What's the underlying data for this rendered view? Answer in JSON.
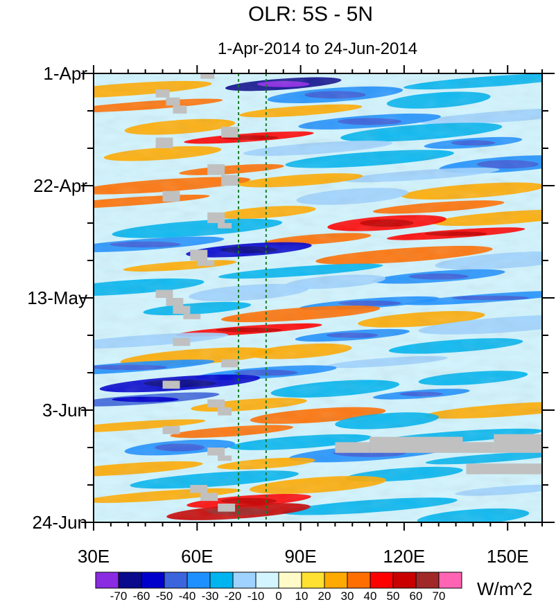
{
  "chart_data": {
    "type": "heatmap",
    "title": "OLR: 5S - 5N",
    "subtitle": "1-Apr-2014 to 24-Jun-2014",
    "x_range": [
      30,
      160
    ],
    "y_range_days": [
      0,
      84
    ],
    "x_ticks": [
      {
        "value": 30,
        "label": "30E"
      },
      {
        "value": 60,
        "label": "60E"
      },
      {
        "value": 90,
        "label": "90E"
      },
      {
        "value": 120,
        "label": "120E"
      },
      {
        "value": 150,
        "label": "150E"
      }
    ],
    "y_ticks": [
      {
        "day": 0,
        "label": "1-Apr"
      },
      {
        "day": 21,
        "label": "22-Apr"
      },
      {
        "day": 42,
        "label": "13-May"
      },
      {
        "day": 63,
        "label": "3-Jun"
      },
      {
        "day": 84,
        "label": "24-Jun"
      }
    ],
    "vertical_reference_lines": [
      72,
      80
    ],
    "colorbar": {
      "unit_label": "W/m^2",
      "levels": [
        "-70",
        "-60",
        "-50",
        "-40",
        "-30",
        "-20",
        "-10",
        "0",
        "10",
        "20",
        "30",
        "40",
        "50",
        "60",
        "70"
      ],
      "colors": [
        "#8a2be2",
        "#0a0a8c",
        "#0000cd",
        "#3c64dc",
        "#1e90ff",
        "#00b4f0",
        "#a0d2ff",
        "#d2f5ff",
        "#fffac8",
        "#ffe132",
        "#ffaa00",
        "#ff6e00",
        "#ff0000",
        "#c80000",
        "#a02828",
        "#ff64b4"
      ]
    },
    "anomaly_bands": [
      {
        "day": 1.5,
        "lon": 145,
        "value": -25
      },
      {
        "day": 2,
        "lon": 85,
        "value": -70
      },
      {
        "day": 3,
        "lon": 40,
        "value": 20
      },
      {
        "day": 4,
        "lon": 100,
        "value": -40
      },
      {
        "day": 5,
        "lon": 130,
        "value": -30
      },
      {
        "day": 6,
        "lon": 45,
        "value": 30
      },
      {
        "day": 7,
        "lon": 90,
        "value": 20
      },
      {
        "day": 8,
        "lon": 150,
        "value": -20
      },
      {
        "day": 9,
        "lon": 110,
        "value": -40
      },
      {
        "day": 10,
        "lon": 55,
        "value": 20
      },
      {
        "day": 11,
        "lon": 125,
        "value": -25
      },
      {
        "day": 12,
        "lon": 75,
        "value": 40
      },
      {
        "day": 13,
        "lon": 140,
        "value": -40
      },
      {
        "day": 14,
        "lon": 95,
        "value": -20
      },
      {
        "day": 15,
        "lon": 50,
        "value": 20
      },
      {
        "day": 16,
        "lon": 110,
        "value": -30
      },
      {
        "day": 17,
        "lon": 150,
        "value": -40
      },
      {
        "day": 18,
        "lon": 70,
        "value": 30
      },
      {
        "day": 19,
        "lon": 125,
        "value": -20
      },
      {
        "day": 20,
        "lon": 90,
        "value": 20
      },
      {
        "day": 21,
        "lon": 50,
        "value": 30
      },
      {
        "day": 22,
        "lon": 140,
        "value": 20
      },
      {
        "day": 23,
        "lon": 105,
        "value": -20
      },
      {
        "day": 24,
        "lon": 40,
        "value": 30
      },
      {
        "day": 25,
        "lon": 130,
        "value": 30
      },
      {
        "day": 26,
        "lon": 80,
        "value": 20
      },
      {
        "day": 27,
        "lon": 150,
        "value": 20
      },
      {
        "day": 28,
        "lon": 115,
        "value": 40
      },
      {
        "day": 29,
        "lon": 60,
        "value": -30
      },
      {
        "day": 30,
        "lon": 135,
        "value": 40
      },
      {
        "day": 31,
        "lon": 95,
        "value": 30
      },
      {
        "day": 32,
        "lon": 45,
        "value": -40
      },
      {
        "day": 33,
        "lon": 75,
        "value": -60
      },
      {
        "day": 34,
        "lon": 120,
        "value": 30
      },
      {
        "day": 35,
        "lon": 150,
        "value": -20
      },
      {
        "day": 36,
        "lon": 55,
        "value": 20
      },
      {
        "day": 37,
        "lon": 90,
        "value": -30
      },
      {
        "day": 38,
        "lon": 130,
        "value": -40
      },
      {
        "day": 39,
        "lon": 100,
        "value": -20
      },
      {
        "day": 40,
        "lon": 40,
        "value": -30
      },
      {
        "day": 41,
        "lon": 75,
        "value": -20
      },
      {
        "day": 42,
        "lon": 145,
        "value": -40
      },
      {
        "day": 43,
        "lon": 110,
        "value": -40
      },
      {
        "day": 44,
        "lon": 60,
        "value": -30
      },
      {
        "day": 45,
        "lon": 90,
        "value": 30
      },
      {
        "day": 46,
        "lon": 125,
        "value": 20
      },
      {
        "day": 47,
        "lon": 150,
        "value": -20
      },
      {
        "day": 48,
        "lon": 75,
        "value": 40
      },
      {
        "day": 49,
        "lon": 105,
        "value": -40
      },
      {
        "day": 50,
        "lon": 45,
        "value": -20
      },
      {
        "day": 51,
        "lon": 135,
        "value": -30
      },
      {
        "day": 52,
        "lon": 90,
        "value": 20
      },
      {
        "day": 53,
        "lon": 60,
        "value": 20
      },
      {
        "day": 54,
        "lon": 115,
        "value": -20
      },
      {
        "day": 55,
        "lon": 40,
        "value": -40
      },
      {
        "day": 56,
        "lon": 80,
        "value": -40
      },
      {
        "day": 57,
        "lon": 140,
        "value": -30
      },
      {
        "day": 58,
        "lon": 55,
        "value": -60
      },
      {
        "day": 59,
        "lon": 100,
        "value": -30
      },
      {
        "day": 60,
        "lon": 125,
        "value": -40
      },
      {
        "day": 61,
        "lon": 45,
        "value": -50
      },
      {
        "day": 62,
        "lon": 75,
        "value": 20
      },
      {
        "day": 63,
        "lon": 150,
        "value": 20
      },
      {
        "day": 64,
        "lon": 95,
        "value": 30
      },
      {
        "day": 65,
        "lon": 115,
        "value": -30
      },
      {
        "day": 66,
        "lon": 40,
        "value": 20
      },
      {
        "day": 67,
        "lon": 70,
        "value": 30
      },
      {
        "day": 68,
        "lon": 135,
        "value": -30
      },
      {
        "day": 69,
        "lon": 90,
        "value": -30
      },
      {
        "day": 70,
        "lon": 55,
        "value": -40
      },
      {
        "day": 71,
        "lon": 110,
        "value": -40
      },
      {
        "day": 72,
        "lon": 145,
        "value": -30
      },
      {
        "day": 73,
        "lon": 80,
        "value": 20
      },
      {
        "day": 74,
        "lon": 40,
        "value": 20
      },
      {
        "day": 75,
        "lon": 120,
        "value": -30
      },
      {
        "day": 76,
        "lon": 65,
        "value": -30
      },
      {
        "day": 77,
        "lon": 95,
        "value": 20
      },
      {
        "day": 78,
        "lon": 150,
        "value": -20
      },
      {
        "day": 79,
        "lon": 50,
        "value": 20
      },
      {
        "day": 80,
        "lon": 75,
        "value": 40
      },
      {
        "day": 81,
        "lon": 110,
        "value": -30
      },
      {
        "day": 82,
        "lon": 72,
        "value": 50
      },
      {
        "day": 83,
        "lon": 140,
        "value": -30
      }
    ],
    "missing_blocks": [
      {
        "lon": [
          61,
          65
        ],
        "days": [
          0,
          1
        ]
      },
      {
        "lon": [
          48,
          52
        ],
        "days": [
          3,
          4.5
        ]
      },
      {
        "lon": [
          51,
          55
        ],
        "days": [
          4.5,
          6
        ]
      },
      {
        "lon": [
          53,
          57
        ],
        "days": [
          6,
          7.5
        ]
      },
      {
        "lon": [
          67,
          72
        ],
        "days": [
          10,
          12
        ]
      },
      {
        "lon": [
          48,
          53
        ],
        "days": [
          12,
          14
        ]
      },
      {
        "lon": [
          63,
          68
        ],
        "days": [
          17,
          19
        ]
      },
      {
        "lon": [
          67,
          72
        ],
        "days": [
          19,
          21
        ]
      },
      {
        "lon": [
          50,
          55
        ],
        "days": [
          22,
          24
        ]
      },
      {
        "lon": [
          63,
          68
        ],
        "days": [
          26,
          28
        ]
      },
      {
        "lon": [
          66,
          70
        ],
        "days": [
          28,
          29
        ]
      },
      {
        "lon": [
          58,
          63
        ],
        "days": [
          33,
          35
        ]
      },
      {
        "lon": [
          60,
          65
        ],
        "days": [
          35,
          36
        ]
      },
      {
        "lon": [
          48,
          53
        ],
        "days": [
          40.5,
          42
        ]
      },
      {
        "lon": [
          51,
          56
        ],
        "days": [
          42,
          43.5
        ]
      },
      {
        "lon": [
          53,
          58
        ],
        "days": [
          43.5,
          45
        ]
      },
      {
        "lon": [
          56,
          61
        ],
        "days": [
          45,
          46
        ]
      },
      {
        "lon": [
          53,
          58
        ],
        "days": [
          49.5,
          51
        ]
      },
      {
        "lon": [
          67,
          72
        ],
        "days": [
          53.5,
          55
        ]
      },
      {
        "lon": [
          50,
          55
        ],
        "days": [
          57.5,
          59
        ]
      },
      {
        "lon": [
          63,
          68
        ],
        "days": [
          61,
          62.5
        ]
      },
      {
        "lon": [
          66,
          70
        ],
        "days": [
          62.5,
          64
        ]
      },
      {
        "lon": [
          50,
          55
        ],
        "days": [
          66,
          67.5
        ]
      },
      {
        "lon": [
          100,
          110
        ],
        "days": [
          69,
          71
        ]
      },
      {
        "lon": [
          110,
          137
        ],
        "days": [
          68,
          71
        ]
      },
      {
        "lon": [
          137,
          146
        ],
        "days": [
          69,
          71
        ]
      },
      {
        "lon": [
          146,
          160
        ],
        "days": [
          67.5,
          71
        ]
      },
      {
        "lon": [
          138,
          160
        ],
        "days": [
          73,
          75
        ]
      },
      {
        "lon": [
          63,
          68
        ],
        "days": [
          70,
          71.5
        ]
      },
      {
        "lon": [
          66,
          70
        ],
        "days": [
          71.5,
          72.5
        ]
      },
      {
        "lon": [
          58,
          63
        ],
        "days": [
          77,
          78.5
        ]
      },
      {
        "lon": [
          61,
          66
        ],
        "days": [
          78.5,
          80
        ]
      },
      {
        "lon": [
          66,
          71
        ],
        "days": [
          80.5,
          82
        ]
      }
    ]
  }
}
